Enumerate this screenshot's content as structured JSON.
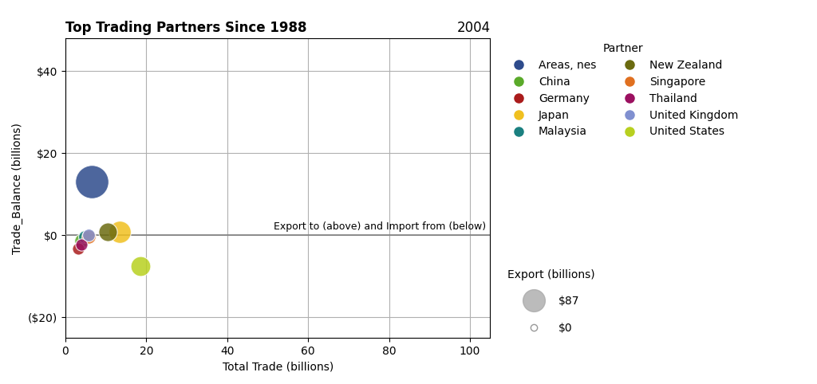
{
  "chart_data": {
    "type": "scatter",
    "title": "Top Trading Partners Since 1988",
    "subtitle": "2004",
    "x_label": "Total Trade (billions)",
    "y_label": "Trade_Balance (billions)",
    "xlim": [
      0,
      105
    ],
    "ylim": [
      -25,
      48
    ],
    "xticks": [
      0,
      20,
      40,
      60,
      80,
      100
    ],
    "yticks": [
      {
        "value": -20,
        "label": "($20)"
      },
      {
        "value": 0,
        "label": "$0"
      },
      {
        "value": 20,
        "label": "$20"
      },
      {
        "value": 40,
        "label": "$40"
      }
    ],
    "grid": true,
    "legend": "right",
    "legend_title": "Partner",
    "zero_line": {
      "y": 0,
      "label": "Export to (above) and Import from (below)"
    },
    "size_legend": {
      "title": "Export (billions)",
      "labels": [
        "$87",
        "$0"
      ]
    },
    "series": [
      {
        "name": "Areas, nes",
        "color": "#2e4b8c",
        "x": [
          6.5
        ],
        "values": [
          13.0
        ],
        "sizes": [
          900
        ]
      },
      {
        "name": "China",
        "color": "#5aaa2a",
        "x": [
          4.0
        ],
        "values": [
          -1.2
        ],
        "sizes": [
          160
        ]
      },
      {
        "name": "Germany",
        "color": "#aa1c1c",
        "x": [
          3.2
        ],
        "values": [
          -3.2
        ],
        "sizes": [
          120
        ]
      },
      {
        "name": "Japan",
        "color": "#f0c020",
        "x": [
          13.5
        ],
        "values": [
          0.8
        ],
        "sizes": [
          400
        ]
      },
      {
        "name": "Malaysia",
        "color": "#1b8080",
        "x": [
          4.8
        ],
        "values": [
          -0.3
        ],
        "sizes": [
          130
        ]
      },
      {
        "name": "New Zealand",
        "color": "#6b6b10",
        "x": [
          10.5
        ],
        "values": [
          0.8
        ],
        "sizes": [
          280
        ]
      },
      {
        "name": "Singapore",
        "color": "#e07020",
        "x": [
          5.8
        ],
        "values": [
          -0.3
        ],
        "sizes": [
          160
        ]
      },
      {
        "name": "Thailand",
        "color": "#9b1060",
        "x": [
          4.0
        ],
        "values": [
          -2.2
        ],
        "sizes": [
          120
        ]
      },
      {
        "name": "United Kingdom",
        "color": "#8090d0",
        "x": [
          5.8
        ],
        "values": [
          0.0
        ],
        "sizes": [
          130
        ]
      },
      {
        "name": "United States",
        "color": "#b8d020",
        "x": [
          18.5
        ],
        "values": [
          -7.5
        ],
        "sizes": [
          320
        ]
      }
    ]
  }
}
